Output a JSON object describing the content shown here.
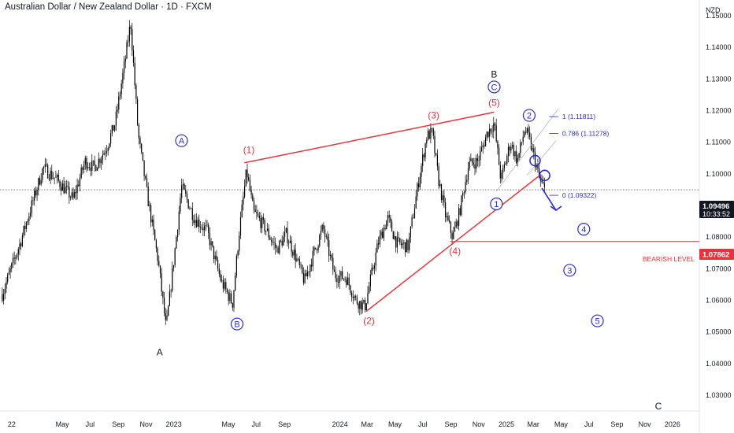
{
  "header": {
    "title": "Australian Dollar / New Zealand Dollar · 1D · FXCM",
    "currency": "NZD"
  },
  "price_marker": {
    "value": "1.09496",
    "countdown": "10:33:52"
  },
  "bearish_marker": {
    "value": "1.07862",
    "label": "BEARISH LEVEL"
  },
  "colors": {
    "candles": "#000000",
    "wave_red": "#e8333d",
    "wave_blue": "#2a2ad2",
    "fib": "#2a2ad2",
    "axis_text": "#131722",
    "grid_divider": "#e0e3eb"
  },
  "chart_data": {
    "type": "line",
    "title": "Australian Dollar / New Zealand Dollar · 1D · FXCM",
    "x_ticks": [
      "22",
      "May",
      "Jul",
      "Sep",
      "Nov",
      "2023",
      "May",
      "Jul",
      "Sep",
      "2024",
      "Mar",
      "May",
      "Jul",
      "Sep",
      "Nov",
      "2025",
      "Mar",
      "May",
      "Jul",
      "Sep",
      "Nov",
      "2026"
    ],
    "x_tick_dates": [
      "2022-01-01",
      "2022-05-01",
      "2022-07-01",
      "2022-09-01",
      "2022-11-01",
      "2023-01-01",
      "2023-05-01",
      "2023-07-01",
      "2023-09-01",
      "2024-01-01",
      "2024-03-01",
      "2024-05-01",
      "2024-07-01",
      "2024-09-01",
      "2024-11-01",
      "2025-01-01",
      "2025-03-01",
      "2025-05-01",
      "2025-07-01",
      "2025-09-01",
      "2025-11-01",
      "2026-01-01"
    ],
    "y_ticks": [
      "1.15000",
      "1.14000",
      "1.13000",
      "1.12000",
      "1.11000",
      "1.10000",
      "1.09000",
      "1.08000",
      "1.07000",
      "1.06000",
      "1.05000",
      "1.04000",
      "1.03000"
    ],
    "ylim": [
      1.025,
      1.155
    ],
    "price_path": {
      "x": [
        "2021-12-20",
        "2022-01-28",
        "2022-03-20",
        "2022-04-20",
        "2022-05-25",
        "2022-06-20",
        "2022-07-10",
        "2022-08-05",
        "2022-08-25",
        "2022-09-15",
        "2022-09-28",
        "2022-10-15",
        "2022-11-05",
        "2022-11-28",
        "2022-12-15",
        "2023-01-05",
        "2023-01-18",
        "2023-02-15",
        "2023-03-15",
        "2023-04-15",
        "2023-05-10",
        "2023-05-25",
        "2023-06-10",
        "2023-06-25",
        "2023-07-20",
        "2023-08-15",
        "2023-09-05",
        "2023-09-25",
        "2023-10-15",
        "2023-11-05",
        "2023-11-25",
        "2023-12-20",
        "2024-01-15",
        "2024-02-05",
        "2024-02-25",
        "2024-03-25",
        "2024-04-15",
        "2024-05-05",
        "2024-05-30",
        "2024-06-20",
        "2024-07-10",
        "2024-07-22",
        "2024-08-05",
        "2024-08-20",
        "2024-09-05",
        "2024-09-20",
        "2024-10-10",
        "2024-10-30",
        "2024-11-20",
        "2024-12-05",
        "2024-12-20",
        "2025-01-10",
        "2025-01-25",
        "2025-02-10",
        "2025-02-20",
        "2025-03-05",
        "2025-03-15",
        "2025-03-26"
      ],
      "y": [
        1.062,
        1.078,
        1.102,
        1.098,
        1.092,
        1.104,
        1.102,
        1.108,
        1.116,
        1.135,
        1.148,
        1.112,
        1.092,
        1.072,
        1.051,
        1.078,
        1.096,
        1.086,
        1.082,
        1.066,
        1.059,
        1.082,
        1.101,
        1.088,
        1.083,
        1.076,
        1.081,
        1.074,
        1.066,
        1.075,
        1.083,
        1.068,
        1.067,
        1.06,
        1.058,
        1.078,
        1.086,
        1.078,
        1.077,
        1.096,
        1.112,
        1.113,
        1.098,
        1.087,
        1.08,
        1.088,
        1.103,
        1.104,
        1.113,
        1.116,
        1.098,
        1.11,
        1.104,
        1.114,
        1.111,
        1.104,
        1.098,
        1.09496
      ]
    },
    "red_lines": [
      {
        "x": [
          "2023-06-05",
          "2024-12-05"
        ],
        "y": [
          1.1035,
          1.1195
        ]
      },
      {
        "x": [
          "2024-02-28",
          "2025-03-15"
        ],
        "y": [
          1.0565,
          1.0995
        ]
      },
      {
        "x": [
          "2024-08-30",
          "2026-06-01"
        ],
        "y": [
          1.07862,
          1.07862
        ]
      }
    ],
    "fib_levels": [
      {
        "label": "1 (1.11811)",
        "y": 1.11811
      },
      {
        "label": "0.786 (1.11278)",
        "y": 1.11278
      },
      {
        "label": "0 (1.09322)",
        "y": 1.09322
      }
    ],
    "projection_arrow": {
      "x": [
        "2025-03-20",
        "2025-04-20"
      ],
      "y": [
        1.0955,
        1.0885
      ]
    },
    "wave_labels": [
      {
        "text": "A",
        "style": "plain",
        "x": "2022-12-01",
        "y": 1.0435
      },
      {
        "text": "A",
        "style": "circle",
        "x": "2023-01-18",
        "y": 1.1105
      },
      {
        "text": "B",
        "style": "circle",
        "x": "2023-05-20",
        "y": 1.0525
      },
      {
        "text": "(1)",
        "style": "red",
        "x": "2023-06-15",
        "y": 1.1075
      },
      {
        "text": "(2)",
        "style": "red",
        "x": "2024-03-05",
        "y": 1.0535
      },
      {
        "text": "(3)",
        "style": "red",
        "x": "2024-07-25",
        "y": 1.1185
      },
      {
        "text": "(4)",
        "style": "red",
        "x": "2024-09-10",
        "y": 1.0755
      },
      {
        "text": "(5)",
        "style": "red",
        "x": "2024-12-05",
        "y": 1.1225
      },
      {
        "text": "B",
        "style": "plain",
        "x": "2024-12-05",
        "y": 1.1315
      },
      {
        "text": "C",
        "style": "circle",
        "x": "2024-12-05",
        "y": 1.1275
      },
      {
        "text": "1",
        "style": "circle",
        "x": "2024-12-10",
        "y": 1.0905
      },
      {
        "text": "2",
        "style": "circle",
        "x": "2025-02-20",
        "y": 1.1185
      },
      {
        "text": "4",
        "style": "circle",
        "x": "2025-06-20",
        "y": 1.0825
      },
      {
        "text": "3",
        "style": "circle",
        "x": "2025-05-20",
        "y": 1.0695
      },
      {
        "text": "5",
        "style": "circle",
        "x": "2025-07-20",
        "y": 1.0535
      },
      {
        "text": "C",
        "style": "plain",
        "x": "2025-12-01",
        "y": 1.0265
      }
    ]
  }
}
